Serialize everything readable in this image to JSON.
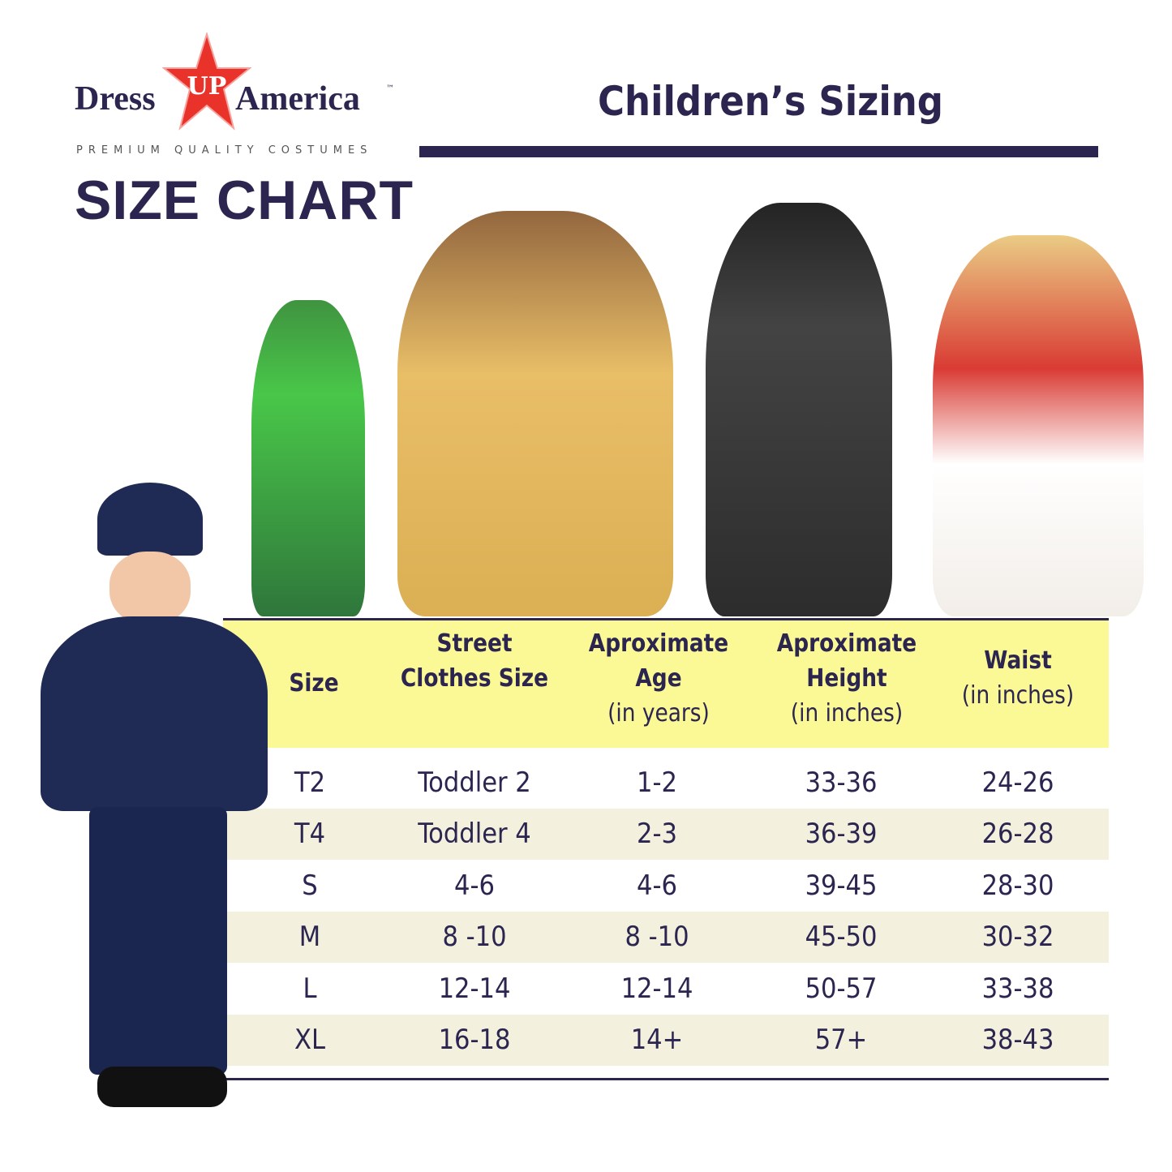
{
  "brand": {
    "word1": "Dress",
    "word2": "UP",
    "word3": "America",
    "tm": "™",
    "tagline": "PREMIUM QUALITY COSTUMES",
    "star_color": "#e8322a"
  },
  "heading": "SIZE CHART",
  "title": "Children’s Sizing",
  "colors": {
    "navy": "#2b2550",
    "header_bg": "#fbf996",
    "stripe": "#f3f1de"
  },
  "photos": [
    "police officer costume",
    "peter pan costume",
    "princess costume",
    "colonial costume",
    "cowgirl costume"
  ],
  "table": {
    "headers": [
      {
        "title": "Size",
        "sub": ""
      },
      {
        "title": "Street Clothes Size",
        "sub": ""
      },
      {
        "title": "Aproximate Age",
        "sub": "(in years)"
      },
      {
        "title": "Aproximate Height",
        "sub": "(in inches)"
      },
      {
        "title": "Waist",
        "sub": "(in inches)"
      }
    ],
    "rows": [
      [
        "T2",
        "Toddler 2",
        "1-2",
        "33-36",
        "24-26"
      ],
      [
        "T4",
        "Toddler 4",
        "2-3",
        "36-39",
        "26-28"
      ],
      [
        "S",
        "4-6",
        "4-6",
        "39-45",
        "28-30"
      ],
      [
        "M",
        "8 -10",
        "8 -10",
        "45-50",
        "30-32"
      ],
      [
        "L",
        "12-14",
        "12-14",
        "50-57",
        "33-38"
      ],
      [
        "XL",
        "16-18",
        "14+",
        "57+",
        "38-43"
      ]
    ]
  }
}
